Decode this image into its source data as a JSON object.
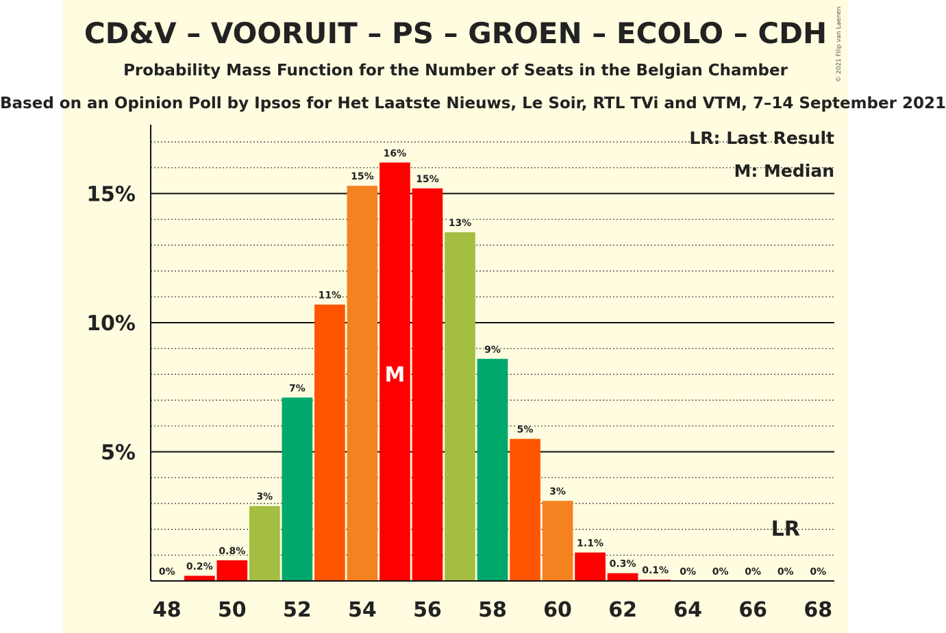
{
  "title": "CD&V – VOORUIT – PS – GROEN – ECOLO – CDH",
  "subtitle": "Probability Mass Function for the Number of Seats in the Belgian Chamber",
  "source": "Based on an Opinion Poll by Ipsos for Het Laatste Nieuws, Le Soir, RTL TVi and VTM, 7–14 September 2021",
  "copyright": "© 2021 Filip van Laenen",
  "legend": {
    "last_result": "LR: Last Result",
    "median": "M: Median"
  },
  "colors": {
    "background": "#fffce0",
    "palette": [
      "#ff0000",
      "#a3be41",
      "#00a86b",
      "#ff5500",
      "#f58220"
    ]
  },
  "chart_data": {
    "type": "bar",
    "x": [
      48,
      49,
      50,
      51,
      52,
      53,
      54,
      55,
      56,
      57,
      58,
      59,
      60,
      61,
      62,
      63,
      64,
      65,
      66,
      67,
      68
    ],
    "values": [
      0,
      0.2,
      0.8,
      2.9,
      7.1,
      10.7,
      15.3,
      16.2,
      15.2,
      13.5,
      8.6,
      5.5,
      3.1,
      1.1,
      0.3,
      0.05,
      0,
      0,
      0,
      0,
      0
    ],
    "labels": [
      "0%",
      "0.2%",
      "0.8%",
      "3%",
      "7%",
      "11%",
      "15%",
      "16%",
      "15%",
      "13%",
      "9%",
      "5%",
      "3%",
      "1.1%",
      "0.3%",
      "0.1%",
      "0%",
      "0%",
      "0%",
      "0%",
      "0%"
    ],
    "bar_colors": [
      "#ff0000",
      "#ff0000",
      "#ff0000",
      "#a3be41",
      "#00a86b",
      "#ff5500",
      "#f58220",
      "#ff0000",
      "#ff0000",
      "#a3be41",
      "#00a86b",
      "#ff5500",
      "#f58220",
      "#ff0000",
      "#ff0000",
      "#ff0000",
      "#ff0000",
      "#ff0000",
      "#ff0000",
      "#ff0000",
      "#ff0000"
    ],
    "x_ticks": [
      48,
      50,
      52,
      54,
      56,
      58,
      60,
      62,
      64,
      66,
      68
    ],
    "y_ticks": [
      5,
      10,
      15
    ],
    "y_tick_labels": [
      "5%",
      "10%",
      "15%"
    ],
    "ylim": [
      0,
      17.6
    ],
    "median": 55,
    "median_label": "M",
    "last_result": 67,
    "last_result_label": "LR",
    "grid": "dotted every 1%, solid every 5%"
  }
}
